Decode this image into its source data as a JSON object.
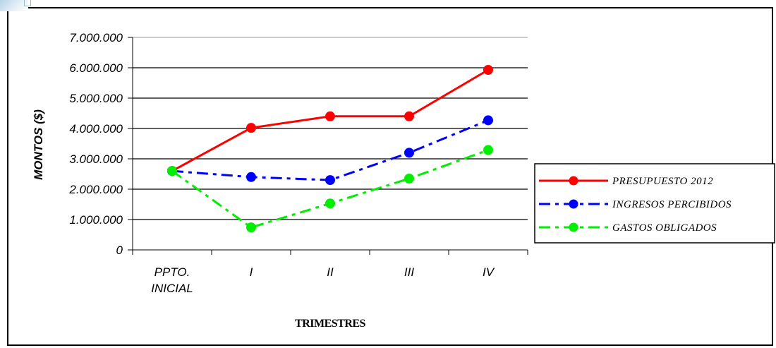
{
  "chart_data": {
    "type": "line",
    "categories": [
      [
        "PPTO.",
        "INICIAL"
      ],
      [
        "I"
      ],
      [
        "II"
      ],
      [
        "III"
      ],
      [
        "IV"
      ]
    ],
    "series": [
      {
        "name": "PRESUPUESTO 2012",
        "color": "#ff0000",
        "dash": "solid",
        "values": [
          2600000,
          4020000,
          4400000,
          4400000,
          5930000
        ]
      },
      {
        "name": "INGRESOS PERCIBIDOS",
        "color": "#0000ff",
        "dash": "dashdot",
        "values": [
          2600000,
          2400000,
          2300000,
          3200000,
          4270000
        ]
      },
      {
        "name": "GASTOS OBLIGADOS",
        "color": "#00ee00",
        "dash": "dashdot",
        "values": [
          2600000,
          740000,
          1530000,
          2350000,
          3290000
        ]
      }
    ],
    "yticks": [
      "0",
      "1.000.000",
      "2.000.000",
      "3.000.000",
      "4.000.000",
      "5.000.000",
      "6.000.000",
      "7.000.000"
    ],
    "ylim": [
      0,
      7000000
    ],
    "xlabel": "TRIMESTRES",
    "ylabel": "MONTOS ($)",
    "grid": true,
    "legend": "right"
  }
}
